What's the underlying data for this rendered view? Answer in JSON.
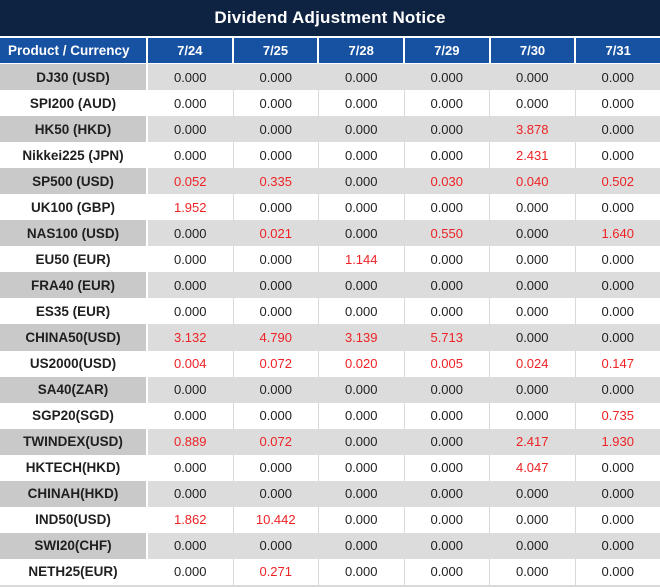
{
  "chart_data": {
    "type": "table",
    "title": "Dividend Adjustment Notice",
    "columns": [
      "Product / Currency",
      "7/24",
      "7/25",
      "7/28",
      "7/29",
      "7/30",
      "7/31"
    ],
    "rows": [
      {
        "product": "DJ30 (USD)",
        "values": [
          "0.000",
          "0.000",
          "0.000",
          "0.000",
          "0.000",
          "0.000"
        ],
        "red": [
          0,
          0,
          0,
          0,
          0,
          0
        ]
      },
      {
        "product": "SPI200 (AUD)",
        "values": [
          "0.000",
          "0.000",
          "0.000",
          "0.000",
          "0.000",
          "0.000"
        ],
        "red": [
          0,
          0,
          0,
          0,
          0,
          0
        ]
      },
      {
        "product": "HK50 (HKD)",
        "values": [
          "0.000",
          "0.000",
          "0.000",
          "0.000",
          "3.878",
          "0.000"
        ],
        "red": [
          0,
          0,
          0,
          0,
          1,
          0
        ]
      },
      {
        "product": "Nikkei225 (JPN)",
        "values": [
          "0.000",
          "0.000",
          "0.000",
          "0.000",
          "2.431",
          "0.000"
        ],
        "red": [
          0,
          0,
          0,
          0,
          1,
          0
        ]
      },
      {
        "product": "SP500 (USD)",
        "values": [
          "0.052",
          "0.335",
          "0.000",
          "0.030",
          "0.040",
          "0.502"
        ],
        "red": [
          1,
          1,
          0,
          1,
          1,
          1
        ]
      },
      {
        "product": "UK100 (GBP)",
        "values": [
          "1.952",
          "0.000",
          "0.000",
          "0.000",
          "0.000",
          "0.000"
        ],
        "red": [
          1,
          0,
          0,
          0,
          0,
          0
        ]
      },
      {
        "product": "NAS100 (USD)",
        "values": [
          "0.000",
          "0.021",
          "0.000",
          "0.550",
          "0.000",
          "1.640"
        ],
        "red": [
          0,
          1,
          0,
          1,
          0,
          1
        ]
      },
      {
        "product": "EU50 (EUR)",
        "values": [
          "0.000",
          "0.000",
          "1.144",
          "0.000",
          "0.000",
          "0.000"
        ],
        "red": [
          0,
          0,
          1,
          0,
          0,
          0
        ]
      },
      {
        "product": "FRA40 (EUR)",
        "values": [
          "0.000",
          "0.000",
          "0.000",
          "0.000",
          "0.000",
          "0.000"
        ],
        "red": [
          0,
          0,
          0,
          0,
          0,
          0
        ]
      },
      {
        "product": "ES35 (EUR)",
        "values": [
          "0.000",
          "0.000",
          "0.000",
          "0.000",
          "0.000",
          "0.000"
        ],
        "red": [
          0,
          0,
          0,
          0,
          0,
          0
        ]
      },
      {
        "product": "CHINA50(USD)",
        "values": [
          "3.132",
          "4.790",
          "3.139",
          "5.713",
          "0.000",
          "0.000"
        ],
        "red": [
          1,
          1,
          1,
          1,
          0,
          0
        ]
      },
      {
        "product": "US2000(USD)",
        "values": [
          "0.004",
          "0.072",
          "0.020",
          "0.005",
          "0.024",
          "0.147"
        ],
        "red": [
          1,
          1,
          1,
          1,
          1,
          1
        ]
      },
      {
        "product": "SA40(ZAR)",
        "values": [
          "0.000",
          "0.000",
          "0.000",
          "0.000",
          "0.000",
          "0.000"
        ],
        "red": [
          0,
          0,
          0,
          0,
          0,
          0
        ]
      },
      {
        "product": "SGP20(SGD)",
        "values": [
          "0.000",
          "0.000",
          "0.000",
          "0.000",
          "0.000",
          "0.735"
        ],
        "red": [
          0,
          0,
          0,
          0,
          0,
          1
        ]
      },
      {
        "product": "TWINDEX(USD)",
        "values": [
          "0.889",
          "0.072",
          "0.000",
          "0.000",
          "2.417",
          "1.930"
        ],
        "red": [
          1,
          1,
          0,
          0,
          1,
          1
        ]
      },
      {
        "product": "HKTECH(HKD)",
        "values": [
          "0.000",
          "0.000",
          "0.000",
          "0.000",
          "4.047",
          "0.000"
        ],
        "red": [
          0,
          0,
          0,
          0,
          1,
          0
        ]
      },
      {
        "product": "CHINAH(HKD)",
        "values": [
          "0.000",
          "0.000",
          "0.000",
          "0.000",
          "0.000",
          "0.000"
        ],
        "red": [
          0,
          0,
          0,
          0,
          0,
          0
        ]
      },
      {
        "product": "IND50(USD)",
        "values": [
          "1.862",
          "10.442",
          "0.000",
          "0.000",
          "0.000",
          "0.000"
        ],
        "red": [
          1,
          1,
          0,
          0,
          0,
          0
        ]
      },
      {
        "product": "SWI20(CHF)",
        "values": [
          "0.000",
          "0.000",
          "0.000",
          "0.000",
          "0.000",
          "0.000"
        ],
        "red": [
          0,
          0,
          0,
          0,
          0,
          0
        ]
      },
      {
        "product": "NETH25(EUR)",
        "values": [
          "0.000",
          "0.271",
          "0.000",
          "0.000",
          "0.000",
          "0.000"
        ],
        "red": [
          0,
          1,
          0,
          0,
          0,
          0
        ]
      }
    ],
    "layout": {
      "grid": "striped-rows",
      "legend": "none"
    }
  },
  "colors": {
    "title_bg": "#0e2342",
    "header_bg": "#1651a2",
    "row_alt_bg": "#dcdcdc",
    "product_alt_bg": "#c9c9c9",
    "value_text": "#1f1f1f",
    "highlight_red": "#ee2224"
  }
}
